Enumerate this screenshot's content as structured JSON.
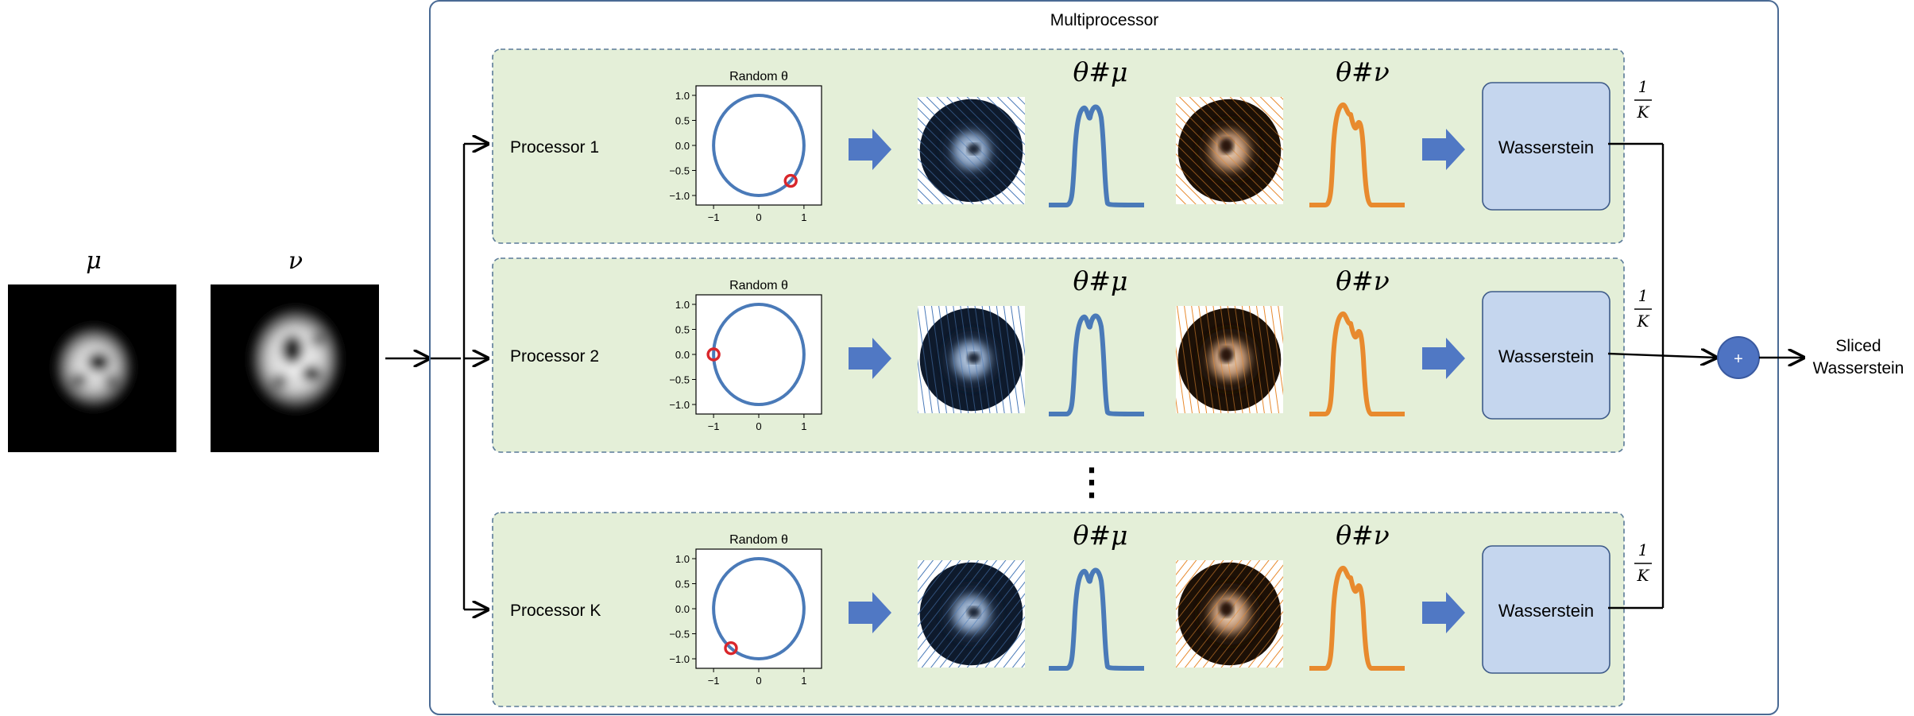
{
  "multiprocessor_label": "Multiprocessor",
  "inputs": {
    "mu_label": "μ",
    "nu_label": "ν"
  },
  "processors": [
    {
      "label": "Processor 1",
      "theta_deg": -45,
      "scatter_kind": "a"
    },
    {
      "label": "Processor 2",
      "theta_deg": 180,
      "scatter_kind": "b"
    },
    {
      "label": "Processor K",
      "theta_deg": -128,
      "scatter_kind": "a"
    }
  ],
  "random_theta_label": "Random θ",
  "push_mu_label": "θ#μ",
  "push_nu_label": "θ#ν",
  "wasserstein_label": "Wasserstein",
  "weight": {
    "numerator": "1",
    "denominator": "K"
  },
  "ellipsis": "⋮",
  "sum_symbol": "+",
  "output_label": [
    "Sliced",
    "Wasserstein"
  ],
  "plot_axis": {
    "ticks": [
      -1,
      -0.5,
      0,
      0.5,
      1
    ],
    "tick_labels": [
      "−1",
      "0",
      "1"
    ],
    "ytick_labels": [
      "1.0",
      "0.5",
      "0.0",
      "−0.5",
      "−1.0"
    ]
  },
  "colors": {
    "panel_fill": "#e4efd8",
    "panel_border": "#5a7a98",
    "outer_border": "#4a6a94",
    "blue": "#4a7ab8",
    "orange": "#e88a2e",
    "arrow": "#5078c4",
    "wass_fill": "#c5d6ee",
    "wass_border": "#3d5a88",
    "plus_fill": "#4e73c2",
    "marker": "#d9262b"
  }
}
